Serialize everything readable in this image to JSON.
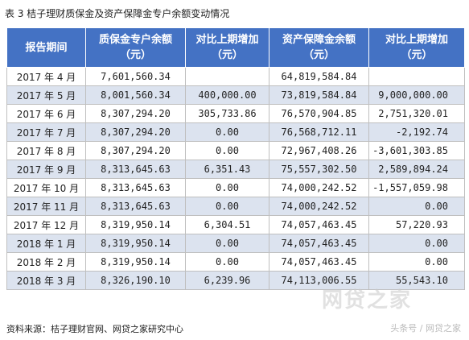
{
  "title": "表 3  桔子理财质保金及资产保障金专户余额变动情况",
  "headers": [
    {
      "line1": "报告期间",
      "line2": ""
    },
    {
      "line1": "质保金专户余额",
      "line2": "（元）"
    },
    {
      "line1": "对比上期增加",
      "line2": "（元）"
    },
    {
      "line1": "资产保障金余额",
      "line2": "（元）"
    },
    {
      "line1": "对比上期增加",
      "line2": "（元）"
    }
  ],
  "rows": [
    {
      "period": "2017 年 4 月",
      "qa_balance": "7,601,560.34",
      "qa_change": "",
      "asset_balance": "64,819,584.84",
      "asset_change": ""
    },
    {
      "period": "2017 年 5 月",
      "qa_balance": "8,001,560.34",
      "qa_change": "400,000.00",
      "asset_balance": "73,819,584.84",
      "asset_change": "9,000,000.00"
    },
    {
      "period": "2017 年 6 月",
      "qa_balance": "8,307,294.20",
      "qa_change": "305,733.86",
      "asset_balance": "76,570,904.85",
      "asset_change": "2,751,320.01"
    },
    {
      "period": "2017 年 7 月",
      "qa_balance": "8,307,294.20",
      "qa_change": "0.00",
      "asset_balance": "76,568,712.11",
      "asset_change": "-2,192.74"
    },
    {
      "period": "2017 年 8 月",
      "qa_balance": "8,307,294.20",
      "qa_change": "0.00",
      "asset_balance": "72,967,408.26",
      "asset_change": "-3,601,303.85"
    },
    {
      "period": "2017 年 9 月",
      "qa_balance": "8,313,645.63",
      "qa_change": "6,351.43",
      "asset_balance": "75,557,302.50",
      "asset_change": "2,589,894.24"
    },
    {
      "period": "2017 年 10 月",
      "qa_balance": "8,313,645.63",
      "qa_change": "0.00",
      "asset_balance": "74,000,242.52",
      "asset_change": "-1,557,059.98"
    },
    {
      "period": "2017 年 11 月",
      "qa_balance": "8,313,645.63",
      "qa_change": "0.00",
      "asset_balance": "74,000,242.52",
      "asset_change": "0.00"
    },
    {
      "period": "2017 年 12 月",
      "qa_balance": "8,319,950.14",
      "qa_change": "6,304.51",
      "asset_balance": "74,057,463.45",
      "asset_change": "57,220.93"
    },
    {
      "period": "2018 年 1 月",
      "qa_balance": "8,319,950.14",
      "qa_change": "0.00",
      "asset_balance": "74,057,463.45",
      "asset_change": "0.00"
    },
    {
      "period": "2018 年 2 月",
      "qa_balance": "8,319,950.14",
      "qa_change": "0.00",
      "asset_balance": "74,057,463.45",
      "asset_change": "0.00"
    },
    {
      "period": "2018 年 3 月",
      "qa_balance": "8,326,190.10",
      "qa_change": "6,239.96",
      "asset_balance": "74,113,006.55",
      "asset_change": "55,543.10"
    }
  ],
  "source": "资料来源：桔子理财官网、网贷之家研究中心",
  "watermark_large": "网贷之家",
  "watermark": "头条号 / 网贷之家"
}
